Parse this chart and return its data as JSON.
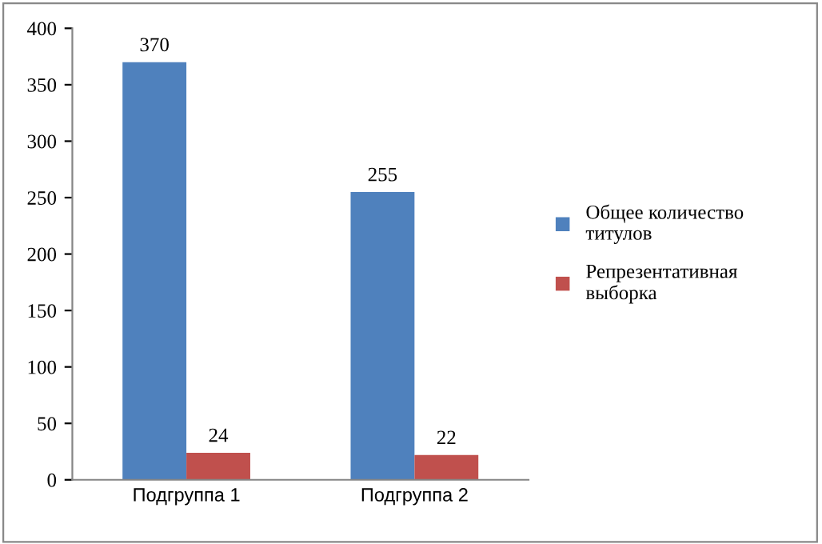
{
  "chart_data": {
    "type": "bar",
    "categories": [
      "Подгруппа 1",
      "Подгруппа 2"
    ],
    "series": [
      {
        "name": "Общее количество\nтитулов",
        "color": "#4f81bd",
        "values": [
          370,
          255
        ]
      },
      {
        "name": "Репрезентативная\nвыборка",
        "color": "#c0504d",
        "values": [
          24,
          22
        ]
      }
    ],
    "ylim": [
      0,
      400
    ],
    "yticks": [
      0,
      50,
      100,
      150,
      200,
      250,
      300,
      350,
      400
    ],
    "data_labels": true,
    "grid": false,
    "legend": "right"
  }
}
